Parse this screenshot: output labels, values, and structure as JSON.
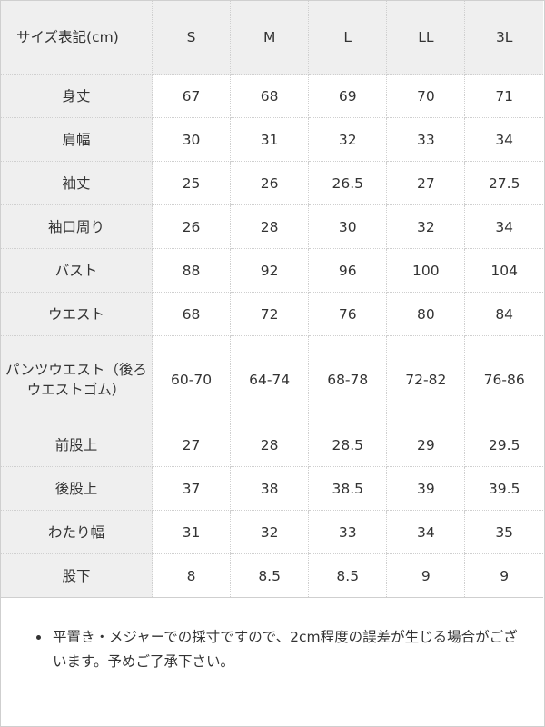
{
  "table": {
    "header_label": "サイズ表記(cm)",
    "sizes": [
      "S",
      "M",
      "L",
      "LL",
      "3L"
    ],
    "rows": [
      {
        "label": "身丈",
        "values": [
          "67",
          "68",
          "69",
          "70",
          "71"
        ]
      },
      {
        "label": "肩幅",
        "values": [
          "30",
          "31",
          "32",
          "33",
          "34"
        ]
      },
      {
        "label": "袖丈",
        "values": [
          "25",
          "26",
          "26.5",
          "27",
          "27.5"
        ]
      },
      {
        "label": "袖口周り",
        "values": [
          "26",
          "28",
          "30",
          "32",
          "34"
        ]
      },
      {
        "label": "バスト",
        "values": [
          "88",
          "92",
          "96",
          "100",
          "104"
        ]
      },
      {
        "label": "ウエスト",
        "values": [
          "68",
          "72",
          "76",
          "80",
          "84"
        ]
      },
      {
        "label": "パンツウエスト（後ろウエストゴム）",
        "values": [
          "60-70",
          "64-74",
          "68-78",
          "72-82",
          "76-86"
        ]
      },
      {
        "label": "前股上",
        "values": [
          "27",
          "28",
          "28.5",
          "29",
          "29.5"
        ]
      },
      {
        "label": "後股上",
        "values": [
          "37",
          "38",
          "38.5",
          "39",
          "39.5"
        ]
      },
      {
        "label": "わたり幅",
        "values": [
          "31",
          "32",
          "33",
          "34",
          "35"
        ]
      },
      {
        "label": "股下",
        "values": [
          "8",
          "8.5",
          "8.5",
          "9",
          "9"
        ]
      }
    ]
  },
  "note": "平置き・メジャーでの採寸ですので、2cm程度の誤差が生じる場合がございます。予めご了承下さい。"
}
